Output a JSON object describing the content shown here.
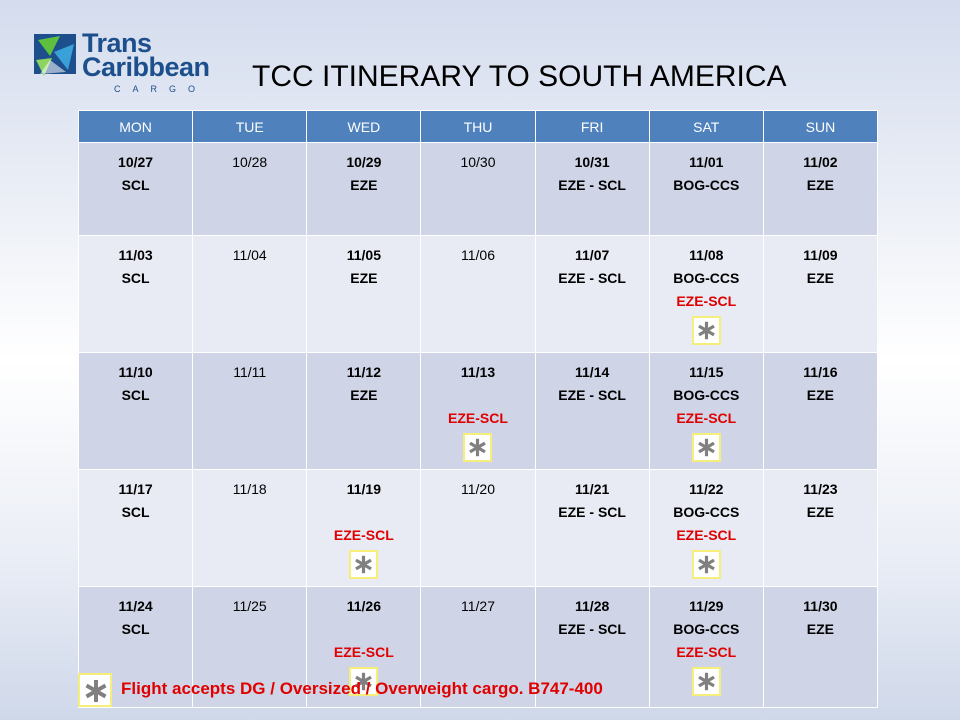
{
  "logo": {
    "line1": "Trans",
    "line2": "Caribbean",
    "line3": "CARGO"
  },
  "title": "TCC ITINERARY TO SOUTH AMERICA",
  "colors": {
    "header_bg": "#4f81bd",
    "dg_red": "#e00000",
    "star_gray": "#808080",
    "star_border": "#f5ee7a"
  },
  "days": [
    "MON",
    "TUE",
    "WED",
    "THU",
    "FRI",
    "SAT",
    "SUN"
  ],
  "weeks": [
    [
      {
        "date": "10/27",
        "bold": true,
        "lines": [
          "SCL"
        ]
      },
      {
        "date": "10/28",
        "bold": false,
        "lines": []
      },
      {
        "date": "10/29",
        "bold": true,
        "lines": [
          "EZE"
        ]
      },
      {
        "date": "10/30",
        "bold": false,
        "lines": []
      },
      {
        "date": "10/31",
        "bold": true,
        "lines": [
          "EZE - SCL"
        ]
      },
      {
        "date": "11/01",
        "bold": true,
        "lines": [
          "BOG-CCS"
        ]
      },
      {
        "date": "11/02",
        "bold": true,
        "lines": [
          "EZE"
        ]
      }
    ],
    [
      {
        "date": "11/03",
        "bold": true,
        "lines": [
          "SCL"
        ]
      },
      {
        "date": "11/04",
        "bold": false,
        "lines": []
      },
      {
        "date": "11/05",
        "bold": true,
        "lines": [
          "EZE"
        ]
      },
      {
        "date": "11/06",
        "bold": false,
        "lines": []
      },
      {
        "date": "11/07",
        "bold": true,
        "lines": [
          "EZE - SCL"
        ]
      },
      {
        "date": "11/08",
        "bold": true,
        "lines": [
          "BOG-CCS"
        ],
        "red": "EZE-SCL",
        "dg": true
      },
      {
        "date": "11/09",
        "bold": true,
        "lines": [
          "EZE"
        ]
      }
    ],
    [
      {
        "date": "11/10",
        "bold": true,
        "lines": [
          "SCL"
        ]
      },
      {
        "date": "11/11",
        "bold": false,
        "lines": []
      },
      {
        "date": "11/12",
        "bold": true,
        "lines": [
          "EZE"
        ]
      },
      {
        "date": "11/13",
        "bold": true,
        "lines": [
          ""
        ],
        "red": "EZE-SCL",
        "dg": true
      },
      {
        "date": "11/14",
        "bold": true,
        "lines": [
          "EZE - SCL"
        ]
      },
      {
        "date": "11/15",
        "bold": true,
        "lines": [
          "BOG-CCS"
        ],
        "red": "EZE-SCL",
        "dg": true
      },
      {
        "date": "11/16",
        "bold": true,
        "lines": [
          "EZE"
        ]
      }
    ],
    [
      {
        "date": "11/17",
        "bold": true,
        "lines": [
          "SCL"
        ]
      },
      {
        "date": "11/18",
        "bold": false,
        "lines": []
      },
      {
        "date": "11/19",
        "bold": true,
        "lines": [
          ""
        ],
        "red": "EZE-SCL",
        "dg": true
      },
      {
        "date": "11/20",
        "bold": false,
        "lines": []
      },
      {
        "date": "11/21",
        "bold": true,
        "lines": [
          "EZE - SCL"
        ]
      },
      {
        "date": "11/22",
        "bold": true,
        "lines": [
          "BOG-CCS"
        ],
        "red": "EZE-SCL",
        "dg": true
      },
      {
        "date": "11/23",
        "bold": true,
        "lines": [
          "EZE"
        ]
      }
    ],
    [
      {
        "date": "11/24",
        "bold": true,
        "lines": [
          "SCL"
        ]
      },
      {
        "date": "11/25",
        "bold": false,
        "lines": []
      },
      {
        "date": "11/26",
        "bold": true,
        "lines": [
          ""
        ],
        "red": "EZE-SCL",
        "dg": true
      },
      {
        "date": "11/27",
        "bold": false,
        "lines": []
      },
      {
        "date": "11/28",
        "bold": true,
        "lines": [
          "EZE - SCL"
        ]
      },
      {
        "date": "11/29",
        "bold": true,
        "lines": [
          "BOG-CCS"
        ],
        "red": "EZE-SCL",
        "dg": true
      },
      {
        "date": "11/30",
        "bold": true,
        "lines": [
          "EZE"
        ]
      }
    ]
  ],
  "legend": {
    "icon": "asterisk-icon",
    "text": "Flight accepts DG / Oversized / Overweight cargo. B747-400"
  }
}
